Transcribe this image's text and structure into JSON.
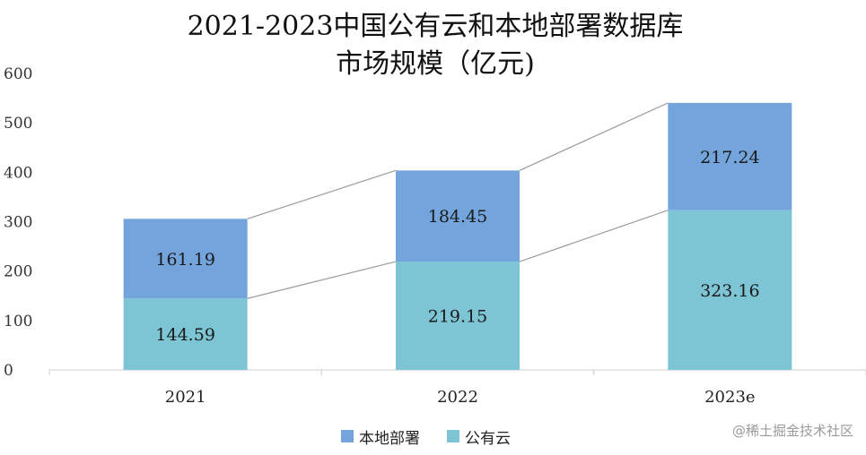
{
  "chart_data": {
    "type": "bar",
    "stacked": true,
    "title_lines": [
      "2021-2023中国公有云和本地部署数据库",
      "市场规模（亿元)"
    ],
    "categories": [
      "2021",
      "2022",
      "2023e"
    ],
    "series": [
      {
        "name": "公有云",
        "values": [
          144.59,
          219.15,
          323.16
        ],
        "color": "#7dc4d4"
      },
      {
        "name": "本地部署",
        "values": [
          161.19,
          184.45,
          217.24
        ],
        "color": "#73a5dc"
      }
    ],
    "legend_order": [
      "本地部署",
      "公有云"
    ],
    "ylim": [
      0,
      600
    ],
    "yticks": [
      0,
      100,
      200,
      300,
      400,
      500,
      600
    ],
    "connector_lines": true,
    "grid": false,
    "legend_position": "bottom"
  },
  "watermark": "@稀土掘金技术社区"
}
